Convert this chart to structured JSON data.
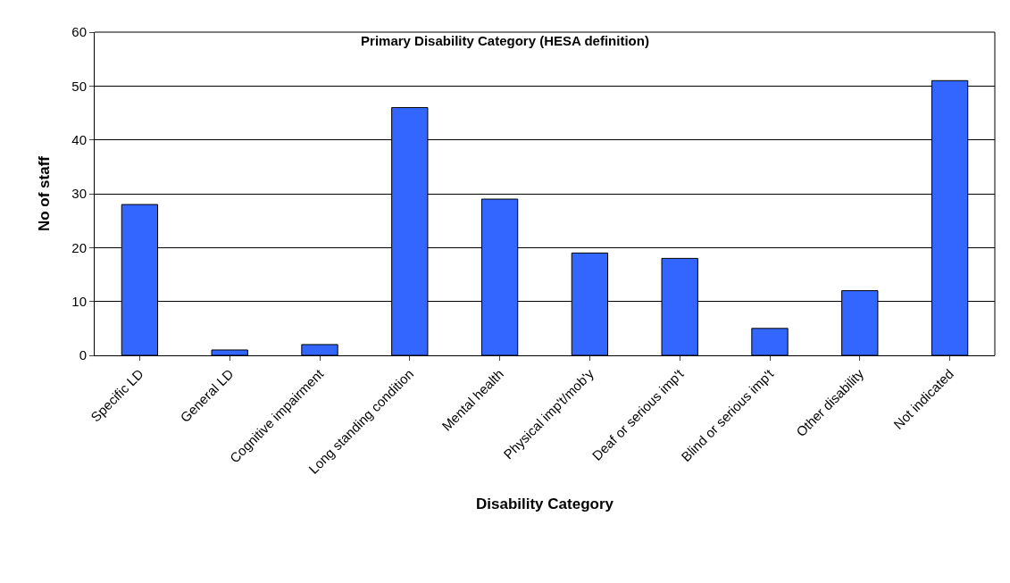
{
  "chart_data": {
    "type": "bar",
    "title": "Primary Disability Category (HESA definition)",
    "xlabel": "Disability Category",
    "ylabel": "No of staff",
    "categories": [
      "Specific LD",
      "General LD",
      "Cognitive impairment",
      "Long standing condition",
      "Mental health",
      "Physical imp't/mob'y",
      "Deaf or serious imp't",
      "Blind or serious imp't",
      "Other disability",
      "Not indicated"
    ],
    "values": [
      28,
      1,
      2,
      46,
      29,
      19,
      18,
      5,
      12,
      51
    ],
    "color": "#3366ff",
    "ylim": [
      0,
      60
    ],
    "yticks": [
      0,
      10,
      20,
      30,
      40,
      50,
      60
    ],
    "grid": "y"
  }
}
